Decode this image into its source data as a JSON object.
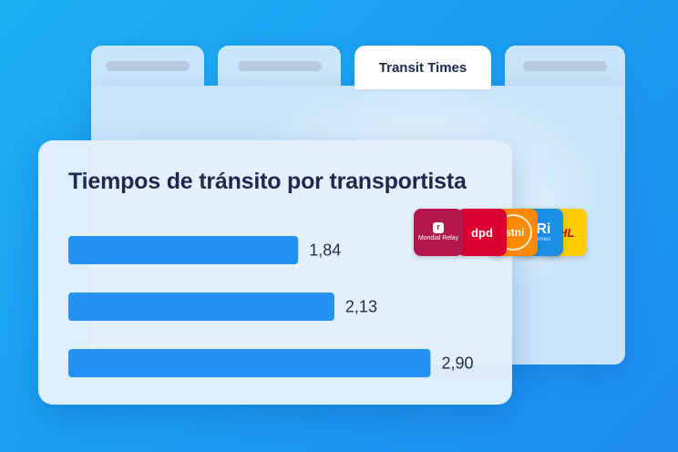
{
  "tabs": [
    {
      "label": ""
    },
    {
      "label": ""
    },
    {
      "label": "Transit Times"
    },
    {
      "label": ""
    }
  ],
  "chart_data": {
    "type": "bar",
    "orientation": "horizontal",
    "title": "Tiempos de tránsito por transportista",
    "categories": [
      "",
      "",
      ""
    ],
    "values": [
      1.84,
      2.13,
      2.9
    ],
    "value_labels": [
      "1,84",
      "2,13",
      "2,90"
    ],
    "xlim": [
      0,
      3.4
    ],
    "grid": false,
    "bar_color": "#2491f7"
  },
  "logos": [
    {
      "icon": "mondial-relay-logo",
      "text": "Mondial Relay",
      "color": "#b3164d"
    },
    {
      "icon": "dpd-logo",
      "text": "dpd",
      "color": "#dc0032"
    },
    {
      "icon": "ups-logo",
      "text": "istni",
      "color": "#ff8a00"
    },
    {
      "icon": "evri-logo",
      "text": "VRi",
      "sub": "w Hermes",
      "color": "#1b8fe6"
    },
    {
      "icon": "dhl-logo",
      "text": "DHL",
      "color": "#ffcc00"
    }
  ]
}
